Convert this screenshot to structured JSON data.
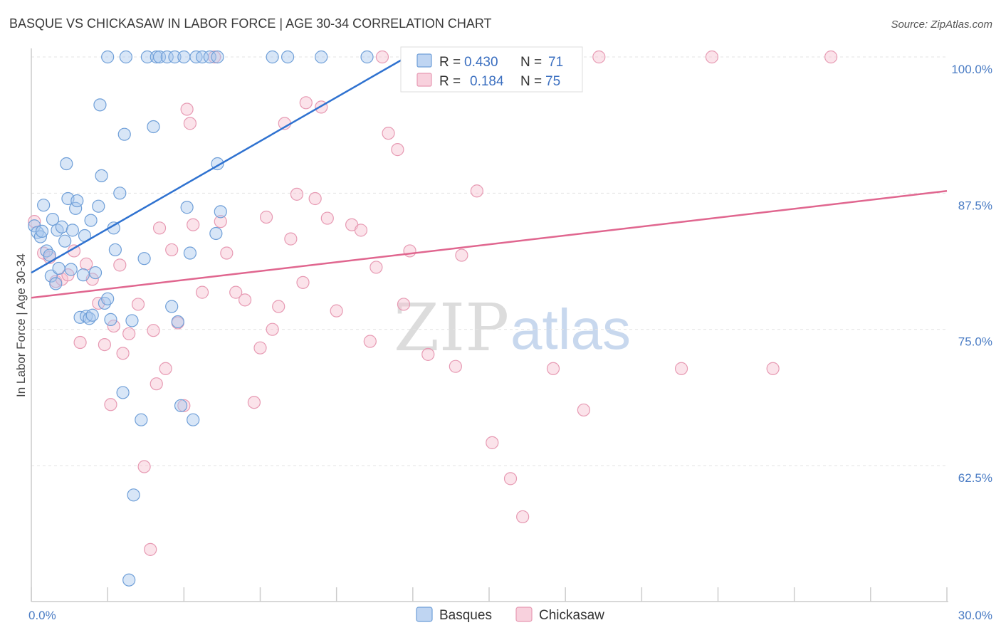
{
  "header": {
    "title": "BASQUE VS CHICKASAW IN LABOR FORCE | AGE 30-34 CORRELATION CHART",
    "source": "Source: ZipAtlas.com"
  },
  "watermark": {
    "zip": "ZIP",
    "atlas": "atlas"
  },
  "legend_box": {
    "rows": [
      {
        "r_label": "R =",
        "r_value": "0.430",
        "n_label": "N =",
        "n_value": "71",
        "color": "#7aa8e6"
      },
      {
        "r_label": "R =",
        "r_value": "0.184",
        "n_label": "N =",
        "n_value": "75",
        "color": "#f0a0b8"
      }
    ]
  },
  "colors": {
    "blue_fill": "#a9c7ee",
    "blue_stroke": "#6f9fd8",
    "blue_line": "#2f72d0",
    "pink_fill": "#f6c1d1",
    "pink_stroke": "#e79ab3",
    "pink_line": "#e0668f",
    "grid": "#e3e3e3",
    "axis": "#cccccc",
    "tick_text": "#4a7cc4"
  },
  "chart_data": {
    "type": "scatter",
    "title": "BASQUE VS CHICKASAW IN LABOR FORCE | AGE 30-34 CORRELATION CHART",
    "xlabel": "",
    "ylabel": "In Labor Force | Age 30-34",
    "xlim": [
      0,
      30
    ],
    "ylim": [
      53,
      101.5
    ],
    "x_tick_labels": [
      {
        "value": 0,
        "label": "0.0%"
      },
      {
        "value": 30,
        "label": "30.0%"
      }
    ],
    "y_tick_labels": [
      {
        "value": 100,
        "label": "100.0%"
      },
      {
        "value": 87.5,
        "label": "87.5%"
      },
      {
        "value": 75,
        "label": "75.0%"
      },
      {
        "value": 62.5,
        "label": "62.5%"
      }
    ],
    "grid": true,
    "legend": [
      "Basques",
      "Chickasaw"
    ],
    "series": [
      {
        "name": "Basques",
        "R": 0.43,
        "N": 71,
        "trend": {
          "x": [
            0,
            12.3
          ],
          "y": [
            80.2,
            100.0
          ]
        },
        "points": [
          [
            0.1,
            84.5
          ],
          [
            0.2,
            83.9
          ],
          [
            0.3,
            83.5
          ],
          [
            0.35,
            84.0
          ],
          [
            0.4,
            86.4
          ],
          [
            0.5,
            82.2
          ],
          [
            0.6,
            81.8
          ],
          [
            0.65,
            79.9
          ],
          [
            0.7,
            85.1
          ],
          [
            0.8,
            79.2
          ],
          [
            0.85,
            84.1
          ],
          [
            0.9,
            80.6
          ],
          [
            1.0,
            84.4
          ],
          [
            1.1,
            83.1
          ],
          [
            1.15,
            90.2
          ],
          [
            1.2,
            87.0
          ],
          [
            1.3,
            80.5
          ],
          [
            1.35,
            84.1
          ],
          [
            1.45,
            86.1
          ],
          [
            1.5,
            86.8
          ],
          [
            1.6,
            76.1
          ],
          [
            1.7,
            80.0
          ],
          [
            1.75,
            83.6
          ],
          [
            1.8,
            76.2
          ],
          [
            1.9,
            76.0
          ],
          [
            1.95,
            85.0
          ],
          [
            2.0,
            76.3
          ],
          [
            2.1,
            80.2
          ],
          [
            2.2,
            86.3
          ],
          [
            2.25,
            95.6
          ],
          [
            2.3,
            89.1
          ],
          [
            2.4,
            77.4
          ],
          [
            2.5,
            77.8
          ],
          [
            2.5,
            100.0
          ],
          [
            2.6,
            75.9
          ],
          [
            2.7,
            84.3
          ],
          [
            2.75,
            82.3
          ],
          [
            2.9,
            87.5
          ],
          [
            3.0,
            69.2
          ],
          [
            3.05,
            92.9
          ],
          [
            3.1,
            100.0
          ],
          [
            3.2,
            52.0
          ],
          [
            3.3,
            75.8
          ],
          [
            3.35,
            59.8
          ],
          [
            3.6,
            66.7
          ],
          [
            3.7,
            81.5
          ],
          [
            3.8,
            100.0
          ],
          [
            4.0,
            93.6
          ],
          [
            4.1,
            100.0
          ],
          [
            4.2,
            100.0
          ],
          [
            4.45,
            100.0
          ],
          [
            4.6,
            77.1
          ],
          [
            4.7,
            100.0
          ],
          [
            4.8,
            75.7
          ],
          [
            4.9,
            68.0
          ],
          [
            5.0,
            100.0
          ],
          [
            5.1,
            86.2
          ],
          [
            5.2,
            82.0
          ],
          [
            5.3,
            66.7
          ],
          [
            5.4,
            100.0
          ],
          [
            5.6,
            100.0
          ],
          [
            5.85,
            100.0
          ],
          [
            6.05,
            83.8
          ],
          [
            6.1,
            100.0
          ],
          [
            6.1,
            90.2
          ],
          [
            6.2,
            85.8
          ],
          [
            7.9,
            100.0
          ],
          [
            8.4,
            100.0
          ],
          [
            9.5,
            100.0
          ],
          [
            11.0,
            100.0
          ],
          [
            12.6,
            100.0
          ]
        ]
      },
      {
        "name": "Chickasaw",
        "R": 0.184,
        "N": 75,
        "trend": {
          "x": [
            0,
            30
          ],
          "y": [
            77.9,
            87.7
          ]
        },
        "points": [
          [
            0.1,
            84.9
          ],
          [
            0.4,
            82.0
          ],
          [
            0.6,
            81.6
          ],
          [
            0.8,
            79.4
          ],
          [
            1.0,
            79.6
          ],
          [
            1.2,
            80.0
          ],
          [
            1.4,
            82.2
          ],
          [
            1.6,
            73.8
          ],
          [
            1.8,
            81.0
          ],
          [
            2.0,
            79.6
          ],
          [
            2.2,
            77.4
          ],
          [
            2.4,
            73.6
          ],
          [
            2.6,
            68.1
          ],
          [
            2.7,
            75.3
          ],
          [
            2.9,
            80.9
          ],
          [
            3.0,
            72.8
          ],
          [
            3.2,
            74.6
          ],
          [
            3.5,
            77.3
          ],
          [
            3.7,
            62.4
          ],
          [
            3.9,
            54.8
          ],
          [
            4.0,
            74.9
          ],
          [
            4.1,
            70.0
          ],
          [
            4.2,
            84.3
          ],
          [
            4.4,
            71.4
          ],
          [
            4.6,
            82.3
          ],
          [
            4.8,
            75.6
          ],
          [
            5.0,
            68.0
          ],
          [
            5.1,
            95.2
          ],
          [
            5.2,
            93.9
          ],
          [
            5.3,
            84.6
          ],
          [
            5.6,
            78.4
          ],
          [
            6.0,
            100.0
          ],
          [
            6.2,
            84.9
          ],
          [
            6.4,
            82.0
          ],
          [
            6.7,
            78.4
          ],
          [
            7.0,
            77.7
          ],
          [
            7.3,
            68.3
          ],
          [
            7.5,
            73.3
          ],
          [
            7.7,
            85.3
          ],
          [
            7.9,
            75.0
          ],
          [
            8.1,
            77.1
          ],
          [
            8.3,
            93.9
          ],
          [
            8.5,
            83.3
          ],
          [
            8.7,
            87.4
          ],
          [
            8.9,
            79.3
          ],
          [
            9.0,
            95.8
          ],
          [
            9.3,
            87.0
          ],
          [
            9.5,
            95.4
          ],
          [
            9.7,
            85.2
          ],
          [
            10.0,
            76.7
          ],
          [
            10.5,
            84.6
          ],
          [
            10.8,
            84.1
          ],
          [
            11.1,
            73.9
          ],
          [
            11.3,
            80.7
          ],
          [
            11.5,
            100.0
          ],
          [
            11.7,
            93.0
          ],
          [
            12.0,
            91.5
          ],
          [
            12.2,
            77.3
          ],
          [
            12.5,
            100.0
          ],
          [
            12.4,
            82.2
          ],
          [
            13.0,
            72.7
          ],
          [
            13.5,
            100.0
          ],
          [
            13.9,
            71.6
          ],
          [
            14.1,
            81.8
          ],
          [
            14.6,
            87.7
          ],
          [
            15.1,
            64.6
          ],
          [
            15.7,
            61.3
          ],
          [
            16.1,
            57.8
          ],
          [
            16.5,
            100.0
          ],
          [
            17.1,
            71.4
          ],
          [
            18.1,
            67.6
          ],
          [
            18.6,
            100.0
          ],
          [
            21.3,
            71.4
          ],
          [
            22.3,
            100.0
          ],
          [
            24.3,
            71.4
          ],
          [
            26.2,
            100.0
          ]
        ]
      }
    ]
  }
}
